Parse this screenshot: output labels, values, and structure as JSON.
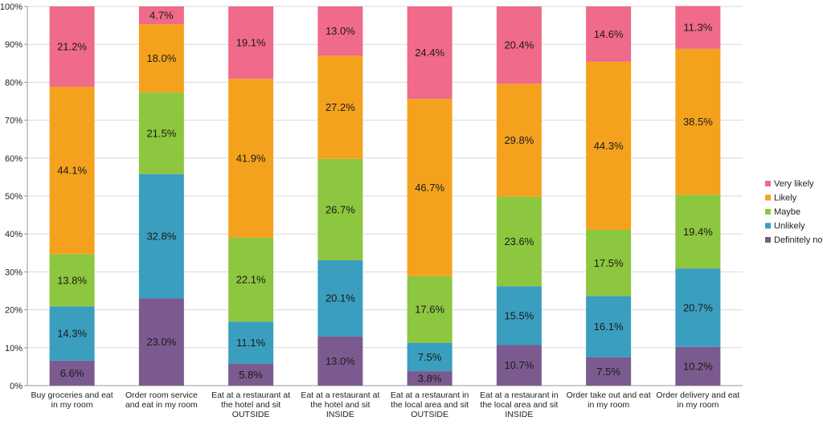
{
  "chart_data": {
    "type": "bar",
    "stacked": true,
    "percent_stacked": true,
    "title": "",
    "xlabel": "",
    "ylabel": "",
    "ylim": [
      0,
      100
    ],
    "y_tick_labels": [
      "0%",
      "10%",
      "20%",
      "30%",
      "40%",
      "50%",
      "60%",
      "70%",
      "80%",
      "90%",
      "100%"
    ],
    "grid": true,
    "legend_position": "right",
    "categories": [
      [
        "Buy groceries and eat",
        "in my room"
      ],
      [
        "Order room service",
        "and eat in my room"
      ],
      [
        "Eat at a restaurant at",
        "the hotel and sit",
        "OUTSIDE"
      ],
      [
        "Eat at a restaurant at",
        "the hotel and sit",
        "INSIDE"
      ],
      [
        "Eat at a restaurant in",
        "the local area and sit",
        "OUTSIDE"
      ],
      [
        "Eat at a restaurant in",
        "the local area and sit",
        "INSIDE"
      ],
      [
        "Order take out and eat",
        "in my room"
      ],
      [
        "Order delivery and eat",
        "in my room"
      ]
    ],
    "series": [
      {
        "name": "Definitely not",
        "color": "#7b5b8f",
        "values": [
          6.6,
          23.0,
          5.8,
          13.0,
          3.8,
          10.7,
          7.5,
          10.2
        ],
        "labels": [
          "6.6%",
          "23.0%",
          "5.8%",
          "13.0%",
          "3.8%",
          "10.7%",
          "7.5%",
          "10.2%"
        ]
      },
      {
        "name": "Unlikely",
        "color": "#3a9ebf",
        "values": [
          14.3,
          32.8,
          11.1,
          20.1,
          7.5,
          15.5,
          16.1,
          20.7
        ],
        "labels": [
          "14.3%",
          "32.8%",
          "11.1%",
          "20.1%",
          "7.5%",
          "15.5%",
          "16.1%",
          "20.7%"
        ]
      },
      {
        "name": "Maybe",
        "color": "#8dc63f",
        "values": [
          13.8,
          21.5,
          22.1,
          26.7,
          17.6,
          23.6,
          17.5,
          19.4
        ],
        "labels": [
          "13.8%",
          "21.5%",
          "22.1%",
          "26.7%",
          "17.6%",
          "23.6%",
          "17.5%",
          "19.4%"
        ]
      },
      {
        "name": "Likely",
        "color": "#f4a21e",
        "values": [
          44.1,
          18.0,
          41.9,
          27.2,
          46.7,
          29.8,
          44.3,
          38.5
        ],
        "labels": [
          "44.1%",
          "18.0%",
          "41.9%",
          "27.2%",
          "46.7%",
          "29.8%",
          "44.3%",
          "38.5%"
        ]
      },
      {
        "name": "Very likely",
        "color": "#f06a8a",
        "values": [
          21.2,
          4.7,
          19.1,
          13.0,
          24.4,
          20.4,
          14.6,
          11.3
        ],
        "labels": [
          "21.2%",
          "4.7%",
          "19.1%",
          "13.0%",
          "24.4%",
          "20.4%",
          "14.6%",
          "11.3%"
        ]
      }
    ],
    "legend_order": [
      "Very likely",
      "Likely",
      "Maybe",
      "Unlikely",
      "Definitely not"
    ]
  }
}
